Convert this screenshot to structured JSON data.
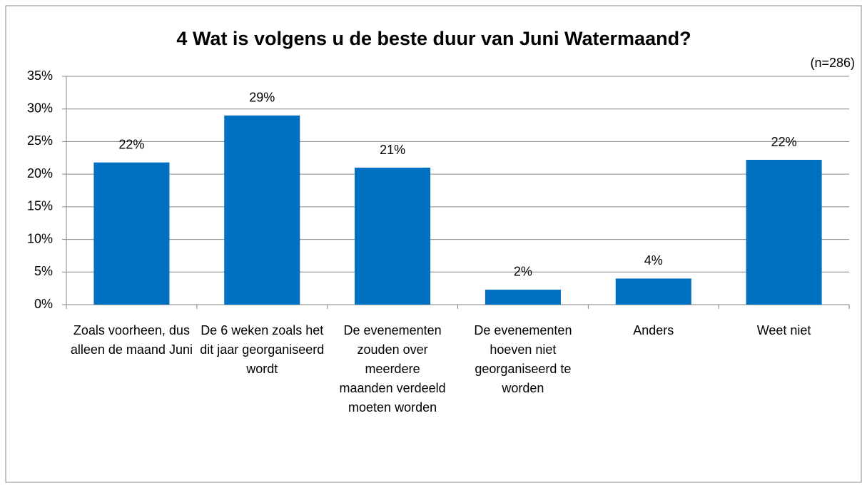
{
  "chart_data": {
    "type": "bar",
    "title": "4 Wat is volgens u de beste duur van Juni Watermaand?",
    "subtitle": "(n=286)",
    "categories": [
      "Zoals voorheen, dus alleen de maand Juni",
      "De 6 weken zoals het dit jaar georganiseerd wordt",
      "De evenementen zouden over meerdere maanden verdeeld moeten worden",
      "De evenementen hoeven niet georganiseerd te worden",
      "Anders",
      "Weet niet"
    ],
    "values": [
      21.8,
      29.0,
      21.0,
      2.3,
      4.0,
      22.2
    ],
    "value_labels": [
      "22%",
      "29%",
      "21%",
      "2%",
      "4%",
      "22%"
    ],
    "color": "#0070c0",
    "ylim": [
      0,
      35
    ],
    "yticks": [
      {
        "value": 0,
        "label": "0%"
      },
      {
        "value": 5,
        "label": "5%"
      },
      {
        "value": 10,
        "label": "10%"
      },
      {
        "value": 15,
        "label": "15%"
      },
      {
        "value": 20,
        "label": "20%"
      },
      {
        "value": 25,
        "label": "25%"
      },
      {
        "value": 30,
        "label": "30%"
      },
      {
        "value": 35,
        "label": "35%"
      }
    ],
    "grid": true
  }
}
